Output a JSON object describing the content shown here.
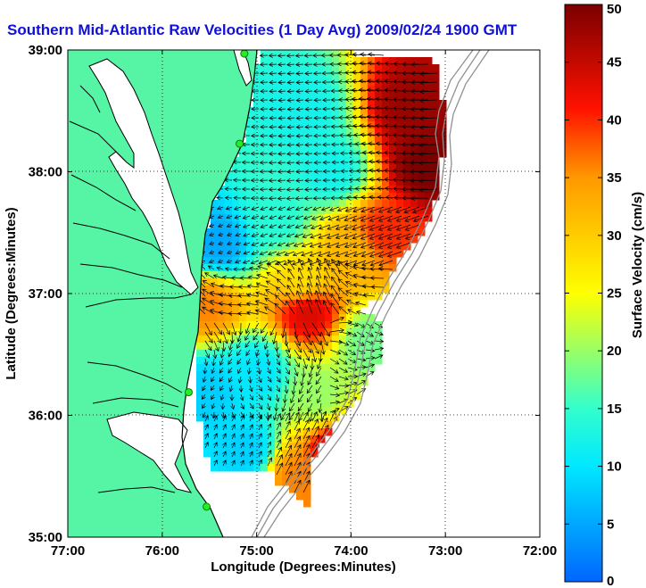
{
  "title": "Southern Mid-Atlantic Raw Velocities (1 Day Avg) 2009/02/24 1900 GMT",
  "map": {
    "x_axis": {
      "label": "Longitude (Degrees:Minutes)",
      "range": [
        -77,
        -72
      ],
      "ticks": [
        {
          "value": -77,
          "label": "77:00"
        },
        {
          "value": -76,
          "label": "76:00"
        },
        {
          "value": -75,
          "label": "75:00"
        },
        {
          "value": -74,
          "label": "74:00"
        },
        {
          "value": -73,
          "label": "73:00"
        },
        {
          "value": -72,
          "label": "72:00"
        }
      ]
    },
    "y_axis": {
      "label": "Latitude (Degrees:Minutes)",
      "range": [
        35,
        39
      ],
      "ticks": [
        {
          "value": 39,
          "label": "39:00"
        },
        {
          "value": 38,
          "label": "38:00"
        },
        {
          "value": 37,
          "label": "37:00"
        },
        {
          "value": 36,
          "label": "36:00"
        },
        {
          "value": 35,
          "label": "35:00"
        }
      ]
    },
    "grid": "dotted",
    "land_color": "#55f5a5",
    "coastline_color": "#000000",
    "bathymetry_color": "#909090",
    "stations": [
      {
        "lon": -75.13,
        "lat": 38.97
      },
      {
        "lon": -75.18,
        "lat": 38.23
      },
      {
        "lon": -75.72,
        "lat": 36.19
      },
      {
        "lon": -75.53,
        "lat": 35.25
      }
    ]
  },
  "colorbar": {
    "label": "Surface Velocity (cm/s)",
    "units": "cm/s",
    "min": 0,
    "max": 50,
    "ticks": [
      {
        "value": 0,
        "label": "0"
      },
      {
        "value": 5,
        "label": "5"
      },
      {
        "value": 10,
        "label": "10"
      },
      {
        "value": 15,
        "label": "15"
      },
      {
        "value": 20,
        "label": "20"
      },
      {
        "value": 25,
        "label": "25"
      },
      {
        "value": 30,
        "label": "30"
      },
      {
        "value": 35,
        "label": "35"
      },
      {
        "value": 40,
        "label": "40"
      },
      {
        "value": 45,
        "label": "45"
      },
      {
        "value": 50,
        "label": "50"
      }
    ]
  },
  "speed_field": [
    {
      "lon": -74.5,
      "lat": 38.5,
      "speed": 12
    },
    {
      "lon": -74.2,
      "lat": 38.0,
      "speed": 12
    },
    {
      "lon": -73.35,
      "lat": 38.5,
      "speed": 48
    },
    {
      "lon": -73.2,
      "lat": 38.05,
      "speed": 50
    },
    {
      "lon": -73.65,
      "lat": 37.5,
      "speed": 40
    },
    {
      "lon": -74.8,
      "lat": 37.6,
      "speed": 14
    },
    {
      "lon": -75.4,
      "lat": 37.4,
      "speed": 5
    },
    {
      "lon": -74.0,
      "lat": 37.35,
      "speed": 32
    },
    {
      "lon": -74.5,
      "lat": 37.1,
      "speed": 28
    },
    {
      "lon": -75.52,
      "lat": 36.9,
      "speed": 36
    },
    {
      "lon": -74.45,
      "lat": 36.85,
      "speed": 44
    },
    {
      "lon": -75.0,
      "lat": 36.35,
      "speed": 10
    },
    {
      "lon": -74.35,
      "lat": 36.15,
      "speed": 20
    },
    {
      "lon": -75.5,
      "lat": 36.2,
      "speed": 8
    },
    {
      "lon": -74.1,
      "lat": 35.7,
      "speed": 47
    },
    {
      "lon": -74.6,
      "lat": 35.5,
      "speed": 36
    },
    {
      "lon": -75.1,
      "lat": 35.7,
      "speed": 8
    },
    {
      "lon": -73.8,
      "lat": 36.6,
      "speed": 18
    }
  ]
}
